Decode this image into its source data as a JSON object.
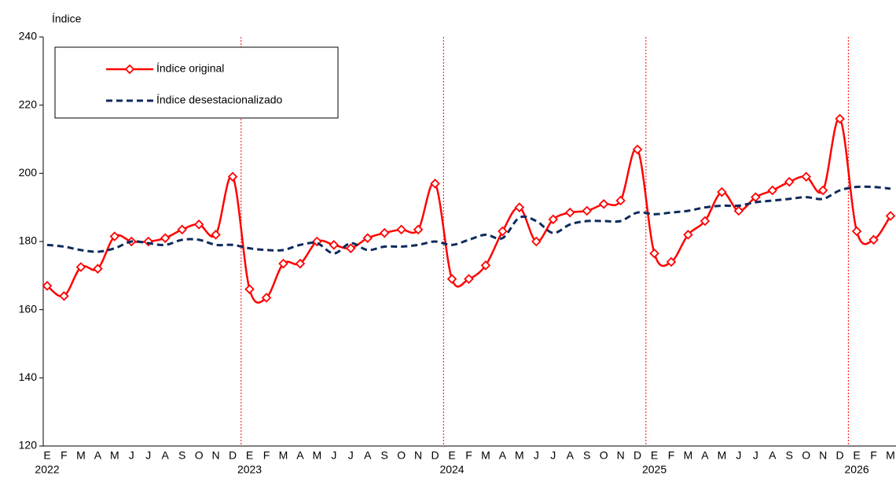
{
  "chart_data": {
    "type": "line",
    "ylabel": "Índice",
    "categories": [
      "E",
      "F",
      "M",
      "A",
      "M",
      "J",
      "J",
      "A",
      "S",
      "O",
      "N",
      "D",
      "E",
      "F",
      "M",
      "A",
      "M",
      "J",
      "J",
      "A",
      "S",
      "O",
      "N",
      "D",
      "E",
      "F",
      "M",
      "A",
      "M",
      "J",
      "J",
      "A",
      "S",
      "O",
      "N",
      "D",
      "E",
      "F",
      "M",
      "A",
      "M",
      "J",
      "J",
      "A",
      "S",
      "O",
      "N",
      "D",
      "E",
      "F",
      "M"
    ],
    "years": [
      "2022",
      "2023",
      "2024",
      "2025",
      "2026"
    ],
    "series": [
      {
        "name": "Índice original",
        "color": "#ff0000",
        "style": "solid",
        "marker": "diamond",
        "values": [
          167,
          164,
          172.5,
          172,
          181.5,
          180,
          180,
          181,
          183.5,
          185,
          182,
          199,
          166,
          163.5,
          173.5,
          173.5,
          180,
          179,
          178,
          181,
          182.5,
          183.5,
          183.5,
          197,
          169,
          169,
          173,
          183,
          190,
          180,
          186.5,
          188.5,
          189,
          191,
          192,
          207,
          176.5,
          174,
          182,
          186,
          194.5,
          189,
          193,
          195,
          197.5,
          199,
          195,
          216,
          183,
          180.5,
          187.5
        ]
      },
      {
        "name": "Índice desestacionalizado",
        "color": "#0d2a5c",
        "style": "dashed",
        "values": [
          179,
          178.5,
          177.5,
          177,
          178,
          180,
          179.5,
          179,
          180.5,
          180.5,
          179,
          179,
          178,
          177.5,
          177.5,
          179,
          179.5,
          176.5,
          179.5,
          177.5,
          178.5,
          178.5,
          179,
          180,
          179,
          180.5,
          182,
          181,
          187,
          186,
          182.5,
          185,
          186,
          186,
          186,
          188.5,
          188,
          188.5,
          189,
          190,
          190.5,
          190.5,
          191.5,
          192,
          192.5,
          193,
          192.5,
          195,
          196,
          196,
          195.5
        ]
      }
    ],
    "ylim": [
      120,
      240
    ],
    "yticks": [
      120,
      140,
      160,
      180,
      200,
      220,
      240
    ],
    "grid": false
  }
}
